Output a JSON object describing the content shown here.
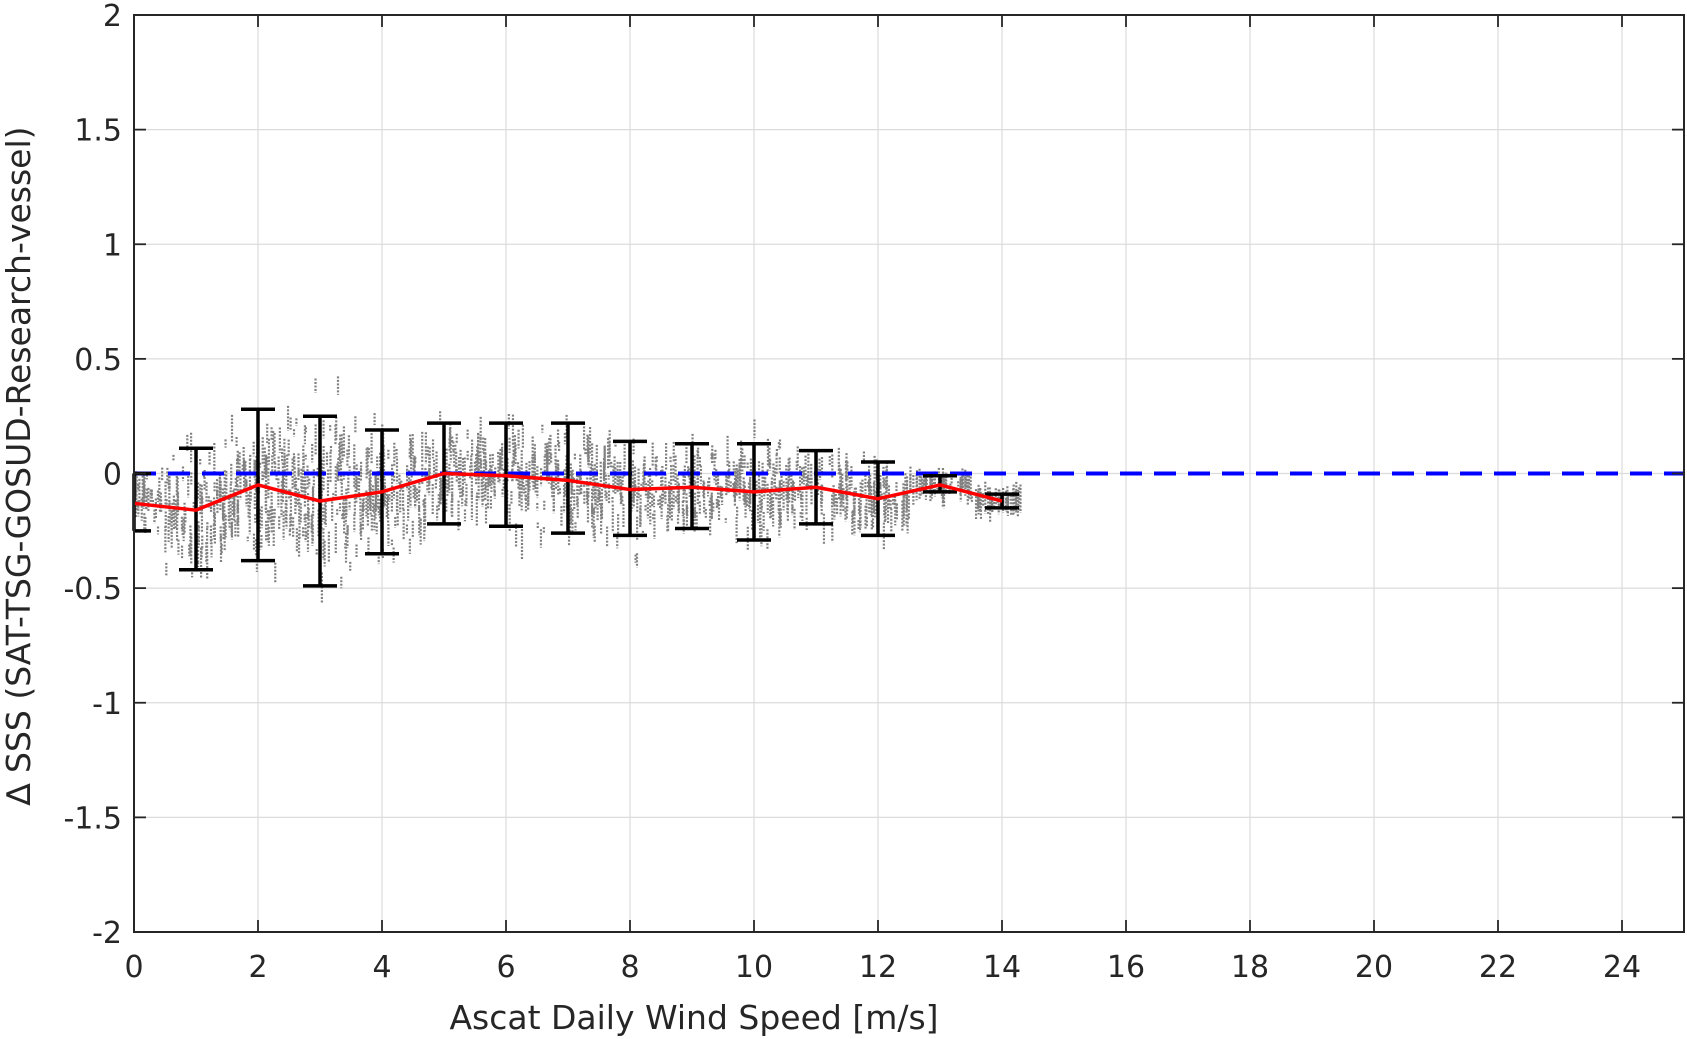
{
  "chart_data": {
    "type": "scatter",
    "title": "",
    "xlabel": "Ascat Daily Wind Speed [m/s]",
    "ylabel": "∆ SSS (SAT-TSG-GOSUD-Research-vessel)",
    "xlim": [
      0,
      25
    ],
    "ylim": [
      -2,
      2
    ],
    "xticks": [
      0,
      2,
      4,
      6,
      8,
      10,
      12,
      14,
      16,
      18,
      20,
      22,
      24
    ],
    "yticks": [
      -2,
      -1.5,
      -1,
      -0.5,
      0,
      0.5,
      1,
      1.5,
      2
    ],
    "xtick_labels": [
      "0",
      "2",
      "4",
      "6",
      "8",
      "10",
      "12",
      "14",
      "16",
      "18",
      "20",
      "22",
      "24"
    ],
    "ytick_labels": [
      "-2",
      "-1.5",
      "-1",
      "-0.5",
      "0",
      "0.5",
      "1",
      "1.5",
      "2"
    ],
    "grid": true,
    "colors": {
      "scatter": "#808080",
      "mean_line": "#ff0000",
      "error_bars": "#000000",
      "zero_line": "#0000ff",
      "grid": "#dcdcdc",
      "axis": "#262626"
    },
    "reference_line": {
      "y": 0,
      "style": "dashed"
    },
    "series": [
      {
        "type": "line",
        "x": [
          0,
          1,
          2,
          3,
          4,
          5,
          6,
          7,
          8,
          9,
          10,
          11,
          12,
          13,
          14
        ],
        "y": [
          -0.13,
          -0.16,
          -0.05,
          -0.12,
          -0.08,
          0.0,
          -0.01,
          -0.03,
          -0.07,
          -0.06,
          -0.08,
          -0.06,
          -0.11,
          -0.05,
          -0.12
        ]
      },
      {
        "type": "errorbar",
        "x": [
          0,
          1,
          2,
          3,
          4,
          5,
          6,
          7,
          8,
          9,
          10,
          11,
          12,
          13,
          14
        ],
        "lower": [
          -0.25,
          -0.42,
          -0.38,
          -0.49,
          -0.35,
          -0.22,
          -0.23,
          -0.26,
          -0.27,
          -0.24,
          -0.29,
          -0.22,
          -0.27,
          -0.08,
          -0.15
        ],
        "upper": [
          0.0,
          0.11,
          0.28,
          0.25,
          0.19,
          0.22,
          0.22,
          0.22,
          0.14,
          0.13,
          0.13,
          0.1,
          0.05,
          -0.01,
          -0.09
        ]
      }
    ]
  }
}
